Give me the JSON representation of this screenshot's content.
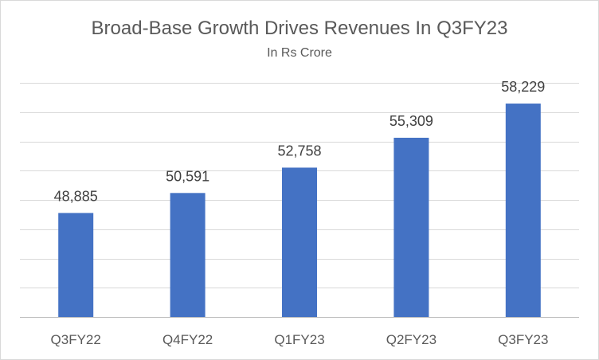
{
  "chart_data": {
    "type": "bar",
    "title": "Broad-Base Growth Drives Revenues In Q3FY23",
    "subtitle": "In Rs Crore",
    "categories": [
      "Q3FY22",
      "Q4FY22",
      "Q1FY23",
      "Q2FY23",
      "Q3FY23"
    ],
    "values": [
      48885,
      50591,
      52758,
      55309,
      58229
    ],
    "data_labels": [
      "48,885",
      "50,591",
      "52,758",
      "55,309",
      "58,229"
    ],
    "ylim": [
      40000,
      60000
    ],
    "y_gridline_step": 2500,
    "grid": true,
    "legend": "none",
    "bar_color": "#4472c4"
  }
}
